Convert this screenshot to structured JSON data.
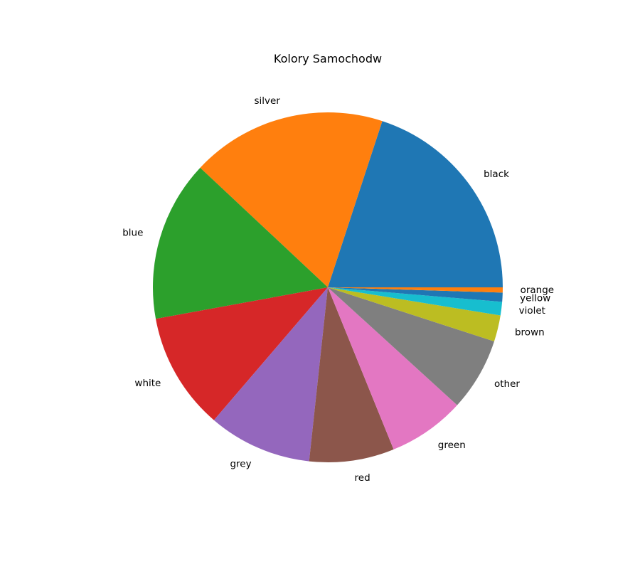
{
  "chart_data": {
    "type": "pie",
    "title": "Kolory Samochodw",
    "start_angle_deg": 0,
    "direction": "counterclockwise",
    "legend": "none",
    "slices": [
      {
        "label": "black",
        "value": 20.36,
        "color": "#1f77b4"
      },
      {
        "label": "silver",
        "value": 18.42,
        "color": "#ff7f0e"
      },
      {
        "label": "blue",
        "value": 15.16,
        "color": "#2ca02c"
      },
      {
        "label": "white",
        "value": 11.05,
        "color": "#d62728"
      },
      {
        "label": "grey",
        "value": 9.77,
        "color": "#9467bd"
      },
      {
        "label": "red",
        "value": 8.0,
        "color": "#8c564b"
      },
      {
        "label": "green",
        "value": 7.25,
        "color": "#e377c2"
      },
      {
        "label": "other",
        "value": 6.89,
        "color": "#7f7f7f"
      },
      {
        "label": "brown",
        "value": 2.48,
        "color": "#bcbd22"
      },
      {
        "label": "violet",
        "value": 1.27,
        "color": "#17becf"
      },
      {
        "label": "yellow",
        "value": 0.86,
        "color": "#1f77b4"
      },
      {
        "label": "orange",
        "value": 0.49,
        "color": "#ff7f0e"
      }
    ]
  }
}
